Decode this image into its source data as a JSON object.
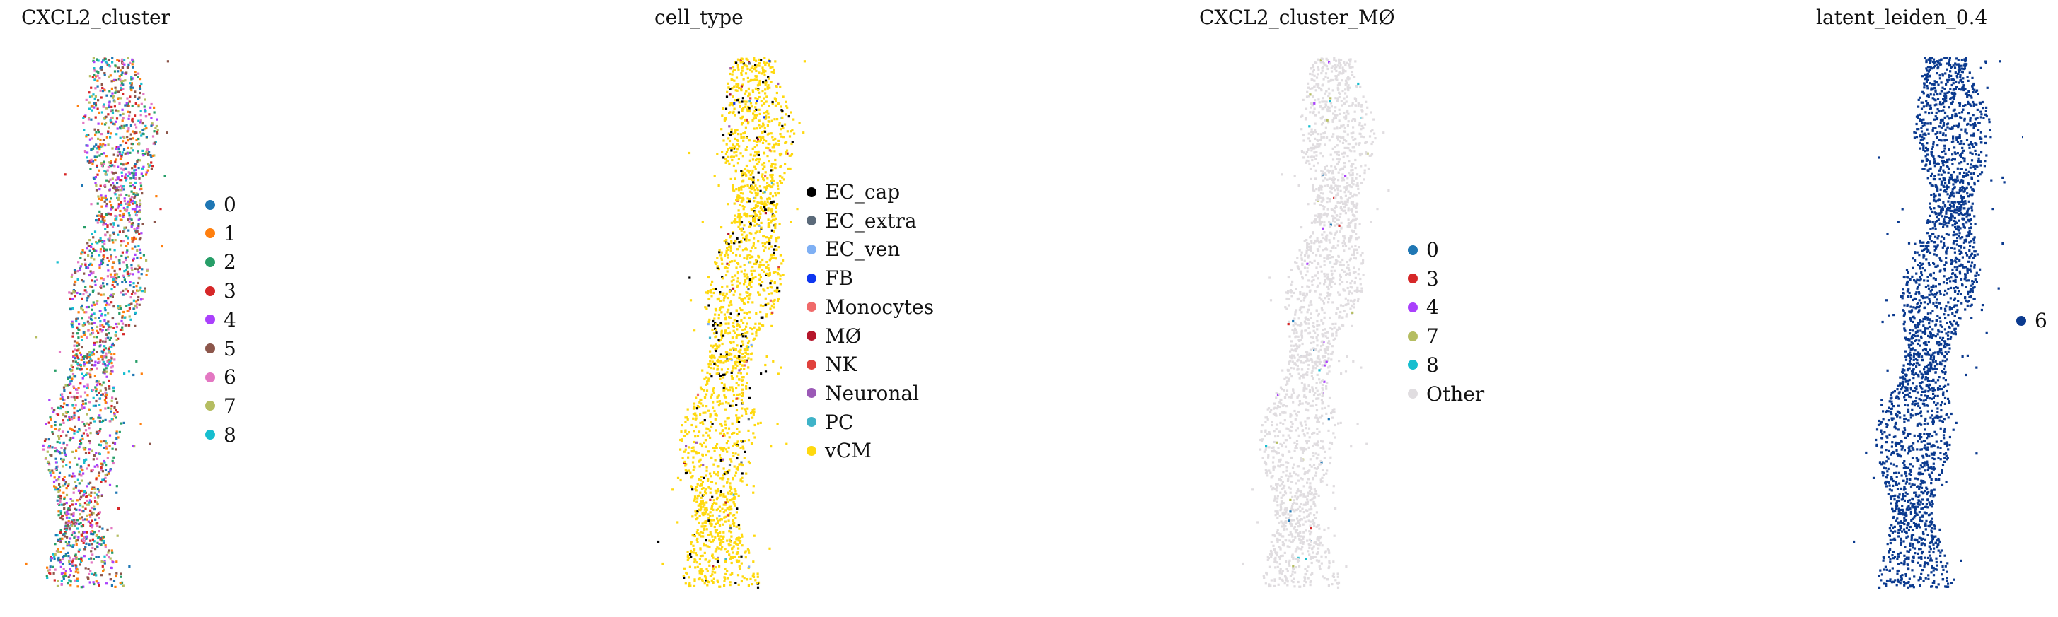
{
  "chart_data": [
    {
      "type": "scatter",
      "title": "CXCL2_cluster",
      "legend_position": "right",
      "legend": [
        {
          "label": "0",
          "color": "#1f77b4"
        },
        {
          "label": "1",
          "color": "#ff7f0e"
        },
        {
          "label": "2",
          "color": "#279e68"
        },
        {
          "label": "3",
          "color": "#d62728"
        },
        {
          "label": "4",
          "color": "#aa40fc"
        },
        {
          "label": "5",
          "color": "#8c564b"
        },
        {
          "label": "6",
          "color": "#e377c2"
        },
        {
          "label": "7",
          "color": "#b5bd61"
        },
        {
          "label": "8",
          "color": "#17becf"
        }
      ]
    },
    {
      "type": "scatter",
      "title": "cell_type",
      "legend_position": "right",
      "legend": [
        {
          "label": "EC_cap",
          "color": "#000000"
        },
        {
          "label": "EC_extra",
          "color": "#5b6a7a"
        },
        {
          "label": "EC_ven",
          "color": "#7fb0f4"
        },
        {
          "label": "FB",
          "color": "#0e36f0"
        },
        {
          "label": "Monocytes",
          "color": "#f06a6a"
        },
        {
          "label": "MØ",
          "color": "#b5162b"
        },
        {
          "label": "NK",
          "color": "#e0413c"
        },
        {
          "label": "Neuronal",
          "color": "#9b59b6"
        },
        {
          "label": "PC",
          "color": "#3fb3c8"
        },
        {
          "label": "vCM",
          "color": "#ffd90f"
        }
      ]
    },
    {
      "type": "scatter",
      "title": "CXCL2_cluster_MØ",
      "legend_position": "right",
      "legend": [
        {
          "label": "0",
          "color": "#1f77b4"
        },
        {
          "label": "3",
          "color": "#d62728"
        },
        {
          "label": "4",
          "color": "#aa40fc"
        },
        {
          "label": "7",
          "color": "#b5bd61"
        },
        {
          "label": "8",
          "color": "#17becf"
        },
        {
          "label": "Other",
          "color": "#e0dde0"
        }
      ]
    },
    {
      "type": "scatter",
      "title": "latent_leiden_0.4",
      "legend_position": "right",
      "legend": [
        {
          "label": "6",
          "color": "#0b3a8f"
        }
      ]
    }
  ]
}
